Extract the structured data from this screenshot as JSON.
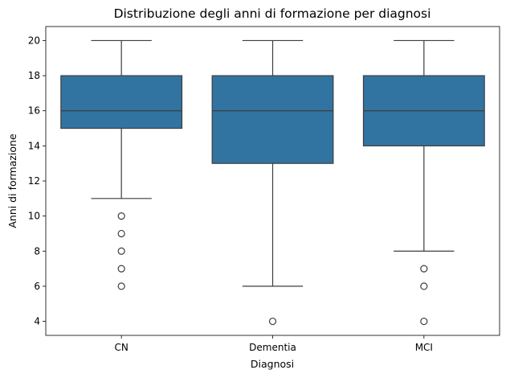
{
  "chart_data": {
    "type": "box",
    "title": "Distribuzione degli anni di formazione per diagnosi",
    "xlabel": "Diagnosi",
    "ylabel": "Anni di formazione",
    "categories": [
      "CN",
      "Dementia",
      "MCI"
    ],
    "ylim": [
      3.2,
      20.8
    ],
    "yticks": [
      4,
      6,
      8,
      10,
      12,
      14,
      16,
      18,
      20
    ],
    "grid": false,
    "box_color": "#3274a1",
    "line_color": "#3d3d3d",
    "boxes": [
      {
        "category": "CN",
        "whisker_low": 11,
        "q1": 15,
        "median": 16,
        "q3": 18,
        "whisker_high": 20,
        "outliers": [
          10,
          9,
          8,
          7,
          6
        ]
      },
      {
        "category": "Dementia",
        "whisker_low": 6,
        "q1": 13,
        "median": 16,
        "q3": 18,
        "whisker_high": 20,
        "outliers": [
          4
        ]
      },
      {
        "category": "MCI",
        "whisker_low": 8,
        "q1": 14,
        "median": 16,
        "q3": 18,
        "whisker_high": 20,
        "outliers": [
          7,
          6,
          4
        ]
      }
    ]
  }
}
